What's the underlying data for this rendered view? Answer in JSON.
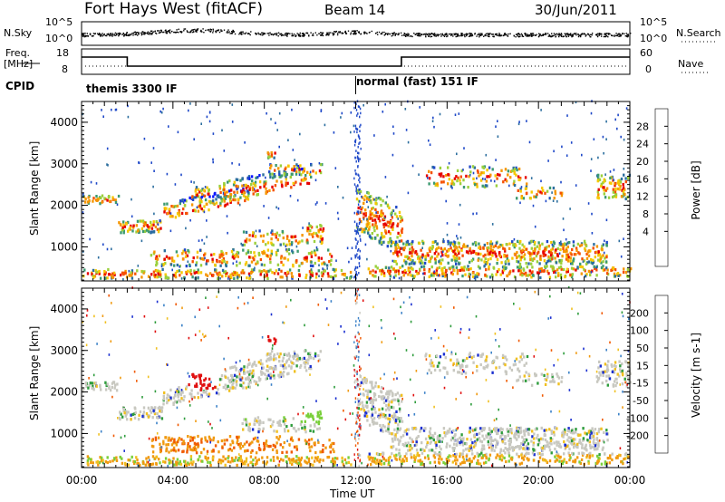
{
  "header": {
    "title": "Fort Hays West (fitACF)",
    "beam": "Beam 14",
    "date": "30/Jun/2011"
  },
  "strips": {
    "nsky_label": "N.Sky",
    "nsearch_label": "N.Search",
    "noise_ticks": [
      "10^5",
      "10^0"
    ],
    "freq_label": "Freq.",
    "freq_unit": "[MHz]",
    "freq_ticks": [
      "18",
      "8"
    ],
    "nave_label": "Nave",
    "nave_ticks": [
      "60",
      "0"
    ],
    "cpid_label": "CPID",
    "cpid_modes": [
      "themis 3300 IF",
      "normal (fast) 151 IF"
    ]
  },
  "chart_data": [
    {
      "type": "heatmap",
      "name": "power",
      "ylabel": "Slant Range [km]",
      "xlabel": "",
      "xlim_hours": [
        0,
        24
      ],
      "ylim": [
        180,
        4500
      ],
      "yticks": [
        "1000",
        "2000",
        "3000",
        "4000"
      ],
      "colorbar_label": "Power [dB]",
      "colorbar_ticks": [
        "28",
        "24",
        "20",
        "16",
        "12",
        "8",
        "4"
      ],
      "colorbar_colors": [
        "#e60000",
        "#f55000",
        "#f59500",
        "#f5c800",
        "#9bd03c",
        "#3c9a70",
        "#2c6e9e",
        "#1e48c8",
        "#0a14ff"
      ]
    },
    {
      "type": "heatmap",
      "name": "velocity",
      "ylabel": "Slant Range [km]",
      "xlabel": "Time UT",
      "xticks": [
        "00:00",
        "04:00",
        "08:00",
        "12:00",
        "16:00",
        "20:00",
        "00:00"
      ],
      "xlim_hours": [
        0,
        24
      ],
      "ylim": [
        180,
        4500
      ],
      "yticks": [
        "1000",
        "2000",
        "3000",
        "4000"
      ],
      "colorbar_label": "Velocity [m s-1]",
      "colorbar_ticks": [
        "200",
        "100",
        "50",
        "15",
        "-15",
        "-50",
        "-100",
        "-200"
      ],
      "colorbar_colors": [
        "#1a2fd0",
        "#3c82c8",
        "#2e9c3c",
        "#79cf3a",
        "#c8c8c0",
        "#f0c020",
        "#f09a10",
        "#f05a00",
        "#e01010"
      ]
    }
  ]
}
